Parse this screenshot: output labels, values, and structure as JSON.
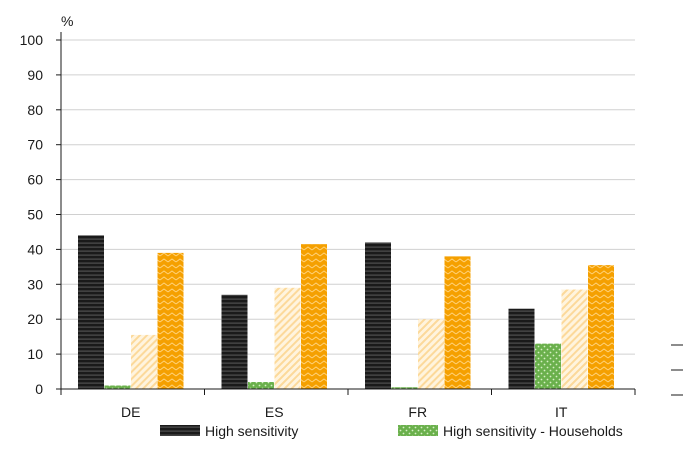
{
  "chart_data": {
    "type": "bar",
    "ylabel": "%",
    "ylim": [
      0,
      100
    ],
    "yticks": [
      0,
      10,
      20,
      30,
      40,
      50,
      60,
      70,
      80,
      90,
      100
    ],
    "categories": [
      "DE",
      "ES",
      "FR",
      "IT"
    ],
    "series": [
      {
        "name": "High sensitivity",
        "values": [
          44,
          27,
          42,
          23
        ],
        "color": "#1a1a1a",
        "pattern": "horizontal-stripes",
        "in_legend": true
      },
      {
        "name": "High sensitivity - Households",
        "values": [
          1,
          2,
          0.5,
          13
        ],
        "color": "#6ab04c",
        "pattern": "dots",
        "in_legend": true
      },
      {
        "name": "",
        "values": [
          15.5,
          29,
          20,
          28.5
        ],
        "color": "#fde3b0",
        "pattern": "diagonal-stripes",
        "in_legend": false
      },
      {
        "name": "",
        "values": [
          39,
          41.5,
          38,
          35.5
        ],
        "color": "#f5a000",
        "pattern": "zigzag",
        "in_legend": false
      }
    ],
    "grid": true,
    "legend_position": "bottom"
  }
}
